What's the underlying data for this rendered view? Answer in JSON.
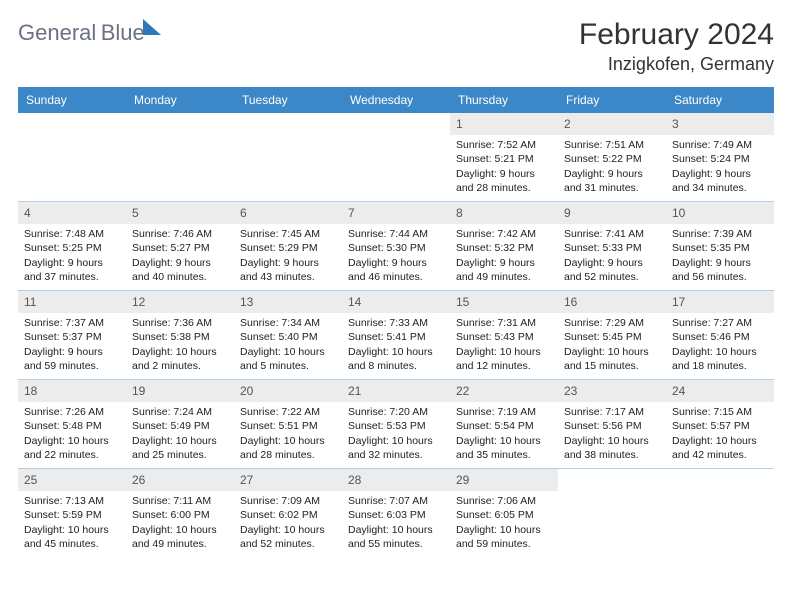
{
  "logo": {
    "text1": "General",
    "text2": "Blue"
  },
  "title": "February 2024",
  "location": "Inzigkofen, Germany",
  "weekdays": [
    "Sunday",
    "Monday",
    "Tuesday",
    "Wednesday",
    "Thursday",
    "Friday",
    "Saturday"
  ],
  "colors": {
    "header_bg": "#3b87c8",
    "header_fg": "#ffffff",
    "daynum_bg": "#ececec",
    "text": "#222222",
    "rule": "#3b87c8"
  },
  "leading_blanks": 4,
  "days": [
    {
      "n": 1,
      "sunrise": "7:52 AM",
      "sunset": "5:21 PM",
      "daylight": "9 hours and 28 minutes."
    },
    {
      "n": 2,
      "sunrise": "7:51 AM",
      "sunset": "5:22 PM",
      "daylight": "9 hours and 31 minutes."
    },
    {
      "n": 3,
      "sunrise": "7:49 AM",
      "sunset": "5:24 PM",
      "daylight": "9 hours and 34 minutes."
    },
    {
      "n": 4,
      "sunrise": "7:48 AM",
      "sunset": "5:25 PM",
      "daylight": "9 hours and 37 minutes."
    },
    {
      "n": 5,
      "sunrise": "7:46 AM",
      "sunset": "5:27 PM",
      "daylight": "9 hours and 40 minutes."
    },
    {
      "n": 6,
      "sunrise": "7:45 AM",
      "sunset": "5:29 PM",
      "daylight": "9 hours and 43 minutes."
    },
    {
      "n": 7,
      "sunrise": "7:44 AM",
      "sunset": "5:30 PM",
      "daylight": "9 hours and 46 minutes."
    },
    {
      "n": 8,
      "sunrise": "7:42 AM",
      "sunset": "5:32 PM",
      "daylight": "9 hours and 49 minutes."
    },
    {
      "n": 9,
      "sunrise": "7:41 AM",
      "sunset": "5:33 PM",
      "daylight": "9 hours and 52 minutes."
    },
    {
      "n": 10,
      "sunrise": "7:39 AM",
      "sunset": "5:35 PM",
      "daylight": "9 hours and 56 minutes."
    },
    {
      "n": 11,
      "sunrise": "7:37 AM",
      "sunset": "5:37 PM",
      "daylight": "9 hours and 59 minutes."
    },
    {
      "n": 12,
      "sunrise": "7:36 AM",
      "sunset": "5:38 PM",
      "daylight": "10 hours and 2 minutes."
    },
    {
      "n": 13,
      "sunrise": "7:34 AM",
      "sunset": "5:40 PM",
      "daylight": "10 hours and 5 minutes."
    },
    {
      "n": 14,
      "sunrise": "7:33 AM",
      "sunset": "5:41 PM",
      "daylight": "10 hours and 8 minutes."
    },
    {
      "n": 15,
      "sunrise": "7:31 AM",
      "sunset": "5:43 PM",
      "daylight": "10 hours and 12 minutes."
    },
    {
      "n": 16,
      "sunrise": "7:29 AM",
      "sunset": "5:45 PM",
      "daylight": "10 hours and 15 minutes."
    },
    {
      "n": 17,
      "sunrise": "7:27 AM",
      "sunset": "5:46 PM",
      "daylight": "10 hours and 18 minutes."
    },
    {
      "n": 18,
      "sunrise": "7:26 AM",
      "sunset": "5:48 PM",
      "daylight": "10 hours and 22 minutes."
    },
    {
      "n": 19,
      "sunrise": "7:24 AM",
      "sunset": "5:49 PM",
      "daylight": "10 hours and 25 minutes."
    },
    {
      "n": 20,
      "sunrise": "7:22 AM",
      "sunset": "5:51 PM",
      "daylight": "10 hours and 28 minutes."
    },
    {
      "n": 21,
      "sunrise": "7:20 AM",
      "sunset": "5:53 PM",
      "daylight": "10 hours and 32 minutes."
    },
    {
      "n": 22,
      "sunrise": "7:19 AM",
      "sunset": "5:54 PM",
      "daylight": "10 hours and 35 minutes."
    },
    {
      "n": 23,
      "sunrise": "7:17 AM",
      "sunset": "5:56 PM",
      "daylight": "10 hours and 38 minutes."
    },
    {
      "n": 24,
      "sunrise": "7:15 AM",
      "sunset": "5:57 PM",
      "daylight": "10 hours and 42 minutes."
    },
    {
      "n": 25,
      "sunrise": "7:13 AM",
      "sunset": "5:59 PM",
      "daylight": "10 hours and 45 minutes."
    },
    {
      "n": 26,
      "sunrise": "7:11 AM",
      "sunset": "6:00 PM",
      "daylight": "10 hours and 49 minutes."
    },
    {
      "n": 27,
      "sunrise": "7:09 AM",
      "sunset": "6:02 PM",
      "daylight": "10 hours and 52 minutes."
    },
    {
      "n": 28,
      "sunrise": "7:07 AM",
      "sunset": "6:03 PM",
      "daylight": "10 hours and 55 minutes."
    },
    {
      "n": 29,
      "sunrise": "7:06 AM",
      "sunset": "6:05 PM",
      "daylight": "10 hours and 59 minutes."
    }
  ],
  "labels": {
    "sunrise": "Sunrise: ",
    "sunset": "Sunset: ",
    "daylight": "Daylight: "
  }
}
